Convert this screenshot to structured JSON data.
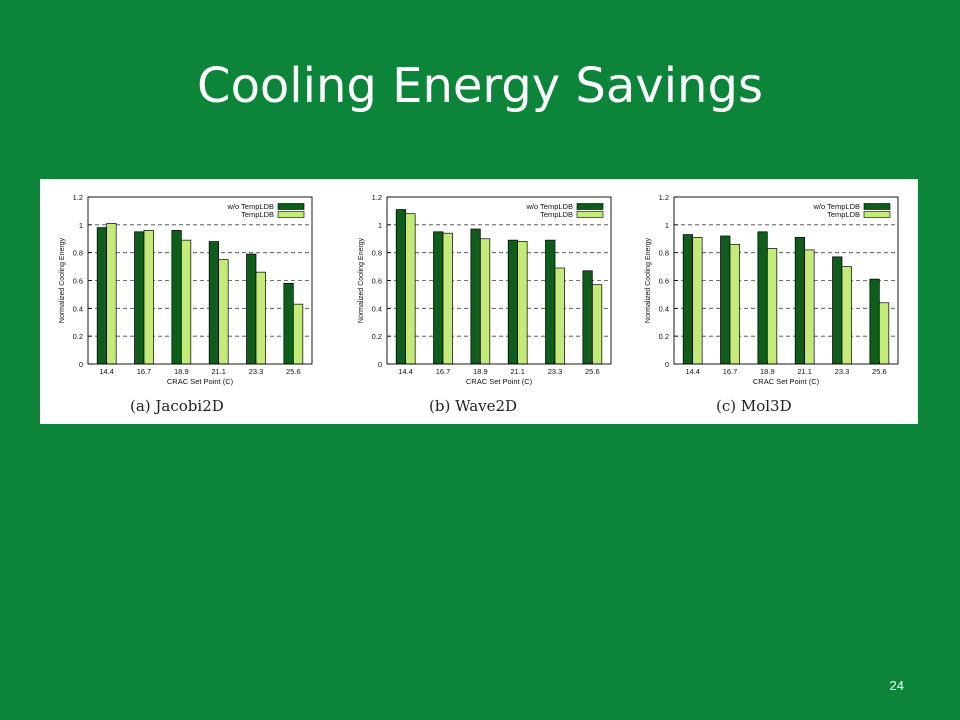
{
  "slide": {
    "title": "Cooling Energy Savings",
    "page_number": "24"
  },
  "colors": {
    "background": "#0c853a",
    "bar_without": "#0f5c1c",
    "bar_with": "#c4eb7a"
  },
  "chart_data": [
    {
      "type": "bar",
      "caption": "(a) Jacobi2D",
      "categories": [
        "14.4",
        "16.7",
        "18.9",
        "21.1",
        "23.3",
        "25.6"
      ],
      "xlabel": "CRAC Set Point (C)",
      "ylabel": "Normalized Cooling Energy",
      "ylim": [
        0,
        1.2
      ],
      "yticks": [
        "0",
        "0.2",
        "0.4",
        "0.6",
        "0.8",
        "1",
        "1.2"
      ],
      "grid": true,
      "legend_position": "top-right",
      "series": [
        {
          "name": "w/o TempLDB",
          "values": [
            0.98,
            0.95,
            0.96,
            0.88,
            0.79,
            0.58
          ]
        },
        {
          "name": "TempLDB",
          "values": [
            1.01,
            0.96,
            0.89,
            0.75,
            0.66,
            0.43
          ]
        }
      ]
    },
    {
      "type": "bar",
      "caption": "(b) Wave2D",
      "categories": [
        "14.4",
        "16.7",
        "18.9",
        "21.1",
        "23.3",
        "25.6"
      ],
      "xlabel": "CRAC Set Point (C)",
      "ylabel": "Normalized Cooling Energy",
      "ylim": [
        0,
        1.2
      ],
      "yticks": [
        "0",
        "0.2",
        "0.4",
        "0.6",
        "0.8",
        "1",
        "1.2"
      ],
      "grid": true,
      "legend_position": "top-right",
      "series": [
        {
          "name": "w/o TempLDB",
          "values": [
            1.11,
            0.95,
            0.97,
            0.89,
            0.89,
            0.67
          ]
        },
        {
          "name": "TempLDB",
          "values": [
            1.08,
            0.94,
            0.9,
            0.88,
            0.69,
            0.57
          ]
        }
      ]
    },
    {
      "type": "bar",
      "caption": "(c) Mol3D",
      "categories": [
        "14.4",
        "16.7",
        "18.9",
        "21.1",
        "23.3",
        "25.6"
      ],
      "xlabel": "CRAC Set Point (C)",
      "ylabel": "Normalized Cooling Energy",
      "ylim": [
        0,
        1.2
      ],
      "yticks": [
        "0",
        "0.2",
        "0.4",
        "0.6",
        "0.8",
        "1",
        "1.2"
      ],
      "grid": true,
      "legend_position": "top-right",
      "series": [
        {
          "name": "w/o TempLDB",
          "values": [
            0.93,
            0.92,
            0.95,
            0.91,
            0.77,
            0.61
          ]
        },
        {
          "name": "TempLDB",
          "values": [
            0.91,
            0.86,
            0.83,
            0.82,
            0.7,
            0.44
          ]
        }
      ]
    }
  ]
}
